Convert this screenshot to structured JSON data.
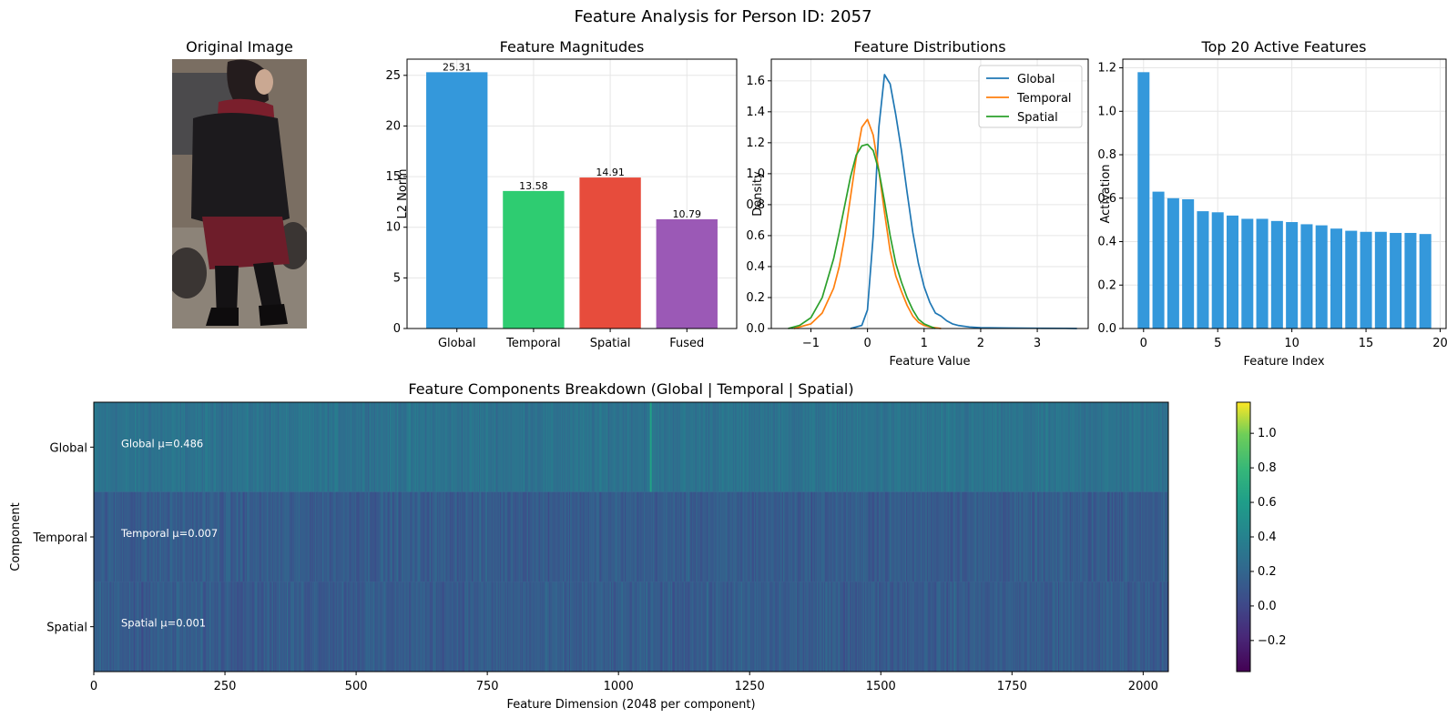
{
  "suptitle": "Feature Analysis for Person ID: 2057",
  "original_image": {
    "title": "Original Image",
    "colors": {
      "background": "#7a6e62",
      "street": "#8c8378",
      "coat": "#1c1a1d",
      "scarf": "#7a1f2c",
      "skirt": "#6e1d2a",
      "hair": "#241c1d",
      "face": "#caa892",
      "wheel": "#3a3533"
    }
  },
  "chart_data": [
    {
      "id": "magnitudes",
      "type": "bar",
      "title": "Feature Magnitudes",
      "xlabel": "",
      "ylabel": "L2 Norm",
      "categories": [
        "Global",
        "Temporal",
        "Spatial",
        "Fused"
      ],
      "values": [
        25.31,
        13.58,
        14.91,
        10.79
      ],
      "value_labels": [
        "25.31",
        "13.58",
        "14.91",
        "10.79"
      ],
      "colors": [
        "#3498db",
        "#2ecc71",
        "#e74c3c",
        "#9b59b6"
      ],
      "ylim": [
        0,
        26.6
      ],
      "yticks": [
        0,
        5,
        10,
        15,
        20,
        25
      ],
      "grid": true
    },
    {
      "id": "distributions",
      "type": "line",
      "title": "Feature Distributions",
      "xlabel": "Feature Value",
      "ylabel": "Density",
      "xlim": [
        -1.7,
        3.9
      ],
      "ylim": [
        0,
        1.74
      ],
      "xticks": [
        -1,
        0,
        1,
        2,
        3
      ],
      "yticks": [
        0.0,
        0.2,
        0.4,
        0.6,
        0.8,
        1.0,
        1.2,
        1.4,
        1.6
      ],
      "legend_position": "top-right",
      "grid": true,
      "series": [
        {
          "name": "Global",
          "color": "#1f77b4",
          "x": [
            -0.3,
            -0.1,
            0.0,
            0.1,
            0.2,
            0.3,
            0.4,
            0.5,
            0.6,
            0.7,
            0.8,
            0.9,
            1.0,
            1.1,
            1.2,
            1.3,
            1.4,
            1.5,
            1.6,
            1.8,
            2.0,
            2.5,
            3.0,
            3.5,
            3.7
          ],
          "y": [
            0.0,
            0.02,
            0.12,
            0.6,
            1.3,
            1.64,
            1.58,
            1.38,
            1.15,
            0.88,
            0.62,
            0.42,
            0.27,
            0.17,
            0.1,
            0.08,
            0.05,
            0.03,
            0.02,
            0.01,
            0.005,
            0.003,
            0.002,
            0.001,
            0.0
          ]
        },
        {
          "name": "Temporal",
          "color": "#ff7f0e",
          "x": [
            -1.3,
            -1.0,
            -0.8,
            -0.6,
            -0.5,
            -0.4,
            -0.3,
            -0.2,
            -0.1,
            0.0,
            0.1,
            0.2,
            0.3,
            0.4,
            0.5,
            0.6,
            0.7,
            0.8,
            0.9,
            1.0,
            1.1,
            1.3
          ],
          "y": [
            0.0,
            0.03,
            0.1,
            0.26,
            0.4,
            0.6,
            0.85,
            1.1,
            1.3,
            1.35,
            1.25,
            1.02,
            0.75,
            0.5,
            0.34,
            0.24,
            0.15,
            0.08,
            0.04,
            0.02,
            0.01,
            0.0
          ]
        },
        {
          "name": "Spatial",
          "color": "#2ca02c",
          "x": [
            -1.4,
            -1.2,
            -1.0,
            -0.8,
            -0.6,
            -0.5,
            -0.4,
            -0.3,
            -0.2,
            -0.1,
            0.0,
            0.1,
            0.2,
            0.3,
            0.4,
            0.5,
            0.6,
            0.7,
            0.8,
            0.9,
            1.0,
            1.2
          ],
          "y": [
            0.0,
            0.02,
            0.07,
            0.2,
            0.45,
            0.62,
            0.8,
            0.98,
            1.12,
            1.18,
            1.19,
            1.15,
            1.02,
            0.82,
            0.6,
            0.42,
            0.3,
            0.2,
            0.12,
            0.06,
            0.03,
            0.0
          ]
        }
      ]
    },
    {
      "id": "top20",
      "type": "bar",
      "title": "Top 20 Active Features",
      "xlabel": "Feature Index",
      "ylabel": "Activation",
      "x": [
        0,
        1,
        2,
        3,
        4,
        5,
        6,
        7,
        8,
        9,
        10,
        11,
        12,
        13,
        14,
        15,
        16,
        17,
        18,
        19
      ],
      "values": [
        1.18,
        0.63,
        0.6,
        0.595,
        0.54,
        0.535,
        0.52,
        0.505,
        0.505,
        0.495,
        0.49,
        0.48,
        0.475,
        0.46,
        0.45,
        0.445,
        0.445,
        0.44,
        0.44,
        0.435
      ],
      "color": "#3498db",
      "xlim": [
        -1.4,
        20.4
      ],
      "ylim": [
        0,
        1.24
      ],
      "xticks": [
        0,
        5,
        10,
        15,
        20
      ],
      "yticks": [
        0.0,
        0.2,
        0.4,
        0.6,
        0.8,
        1.0,
        1.2
      ],
      "grid": true
    },
    {
      "id": "breakdown",
      "type": "heatmap",
      "title": "Feature Components Breakdown (Global | Temporal | Spatial)",
      "xlabel": "Feature Dimension (2048 per component)",
      "ylabel": "Component",
      "rows": [
        "Global",
        "Temporal",
        "Spatial"
      ],
      "columns": 2048,
      "xlim": [
        0,
        2048
      ],
      "xticks": [
        0,
        250,
        500,
        750,
        1000,
        1250,
        1500,
        1750,
        2000
      ],
      "row_means": [
        0.486,
        0.007,
        0.001
      ],
      "annotations": [
        "Global μ=0.486",
        "Temporal μ=0.007",
        "Spatial μ=0.001"
      ],
      "colormap": "viridis",
      "vmin": -0.38,
      "vmax": 1.18,
      "colorbar_ticks": [
        -0.2,
        0.0,
        0.2,
        0.4,
        0.6,
        0.8,
        1.0
      ],
      "colorbar_tick_labels": [
        "−0.2",
        "0.0",
        "0.2",
        "0.4",
        "0.6",
        "0.8",
        "1.0"
      ]
    }
  ]
}
